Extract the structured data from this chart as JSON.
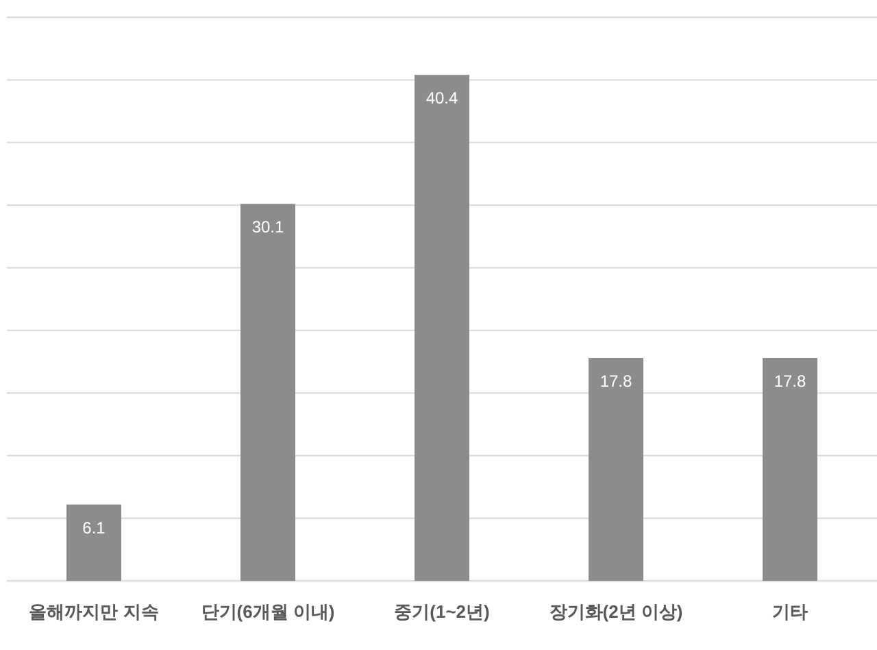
{
  "chart_data": {
    "type": "bar",
    "categories": [
      "올해까지만 지속",
      "단기(6개월 이내)",
      "중기(1~2년)",
      "장기화(2년 이상)",
      "기타"
    ],
    "values": [
      6.1,
      30.1,
      40.4,
      17.8,
      17.8
    ],
    "color": "#8c8c8c",
    "data_labels": true,
    "ylim": [
      0,
      45
    ],
    "yticks": [
      {
        "value": 0,
        "label": null
      },
      {
        "value": 5,
        "label": null
      },
      {
        "value": 10,
        "label": null
      },
      {
        "value": 15,
        "label": null
      },
      {
        "value": 20,
        "label": null
      },
      {
        "value": 25,
        "label": null
      },
      {
        "value": 30,
        "label": null
      },
      {
        "value": 35,
        "label": null
      },
      {
        "value": 40,
        "label": null
      },
      {
        "value": 45,
        "label": null
      }
    ],
    "grid": "y",
    "tick_labels": "x"
  }
}
